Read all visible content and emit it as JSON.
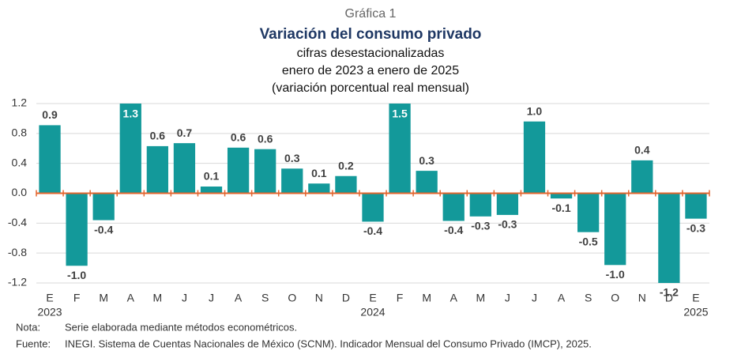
{
  "chart_data": {
    "type": "bar",
    "kicker": "Gráfica 1",
    "title": "Variación del consumo privado",
    "subtitle": [
      "cifras desestacionalizadas",
      "enero de 2023 a enero de 2025",
      "(variación porcentual real mensual)"
    ],
    "categories": [
      "E",
      "F",
      "M",
      "A",
      "M",
      "J",
      "J",
      "A",
      "S",
      "O",
      "N",
      "D",
      "E",
      "F",
      "M",
      "A",
      "M",
      "J",
      "J",
      "A",
      "S",
      "O",
      "N",
      "D",
      "E"
    ],
    "years": [
      "2023",
      null,
      null,
      null,
      null,
      null,
      null,
      null,
      null,
      null,
      null,
      null,
      "2024",
      null,
      null,
      null,
      null,
      null,
      null,
      null,
      null,
      null,
      null,
      null,
      "2025"
    ],
    "values": [
      0.91,
      -0.97,
      -0.36,
      1.3,
      0.63,
      0.67,
      0.09,
      0.61,
      0.59,
      0.33,
      0.13,
      0.23,
      -0.38,
      1.5,
      0.3,
      -0.37,
      -0.31,
      -0.29,
      0.96,
      -0.07,
      -0.52,
      -0.96,
      0.44,
      -1.2,
      -0.34
    ],
    "value_labels": [
      "0.9",
      "-1.0",
      "-0.4",
      "1.3",
      "0.6",
      "0.7",
      "0.1",
      "0.6",
      "0.6",
      "0.3",
      "0.1",
      "0.2",
      "-0.4",
      "1.5",
      "0.3",
      "-0.4",
      "-0.3",
      "-0.3",
      "1.0",
      "-0.1",
      "-0.5",
      "-1.0",
      "0.4",
      "-1.2",
      "-0.3"
    ],
    "color": "#13999a",
    "axis_color": "#e3652e",
    "ylim": [
      -1.2,
      1.2
    ],
    "yticks": [
      -1.2,
      -0.8,
      -0.4,
      {
        "value": 0,
        "label": "0.0"
      },
      0.4,
      0.8,
      1.2
    ],
    "grid": true,
    "notes": [
      {
        "label": "Nota:",
        "text": "Serie elaborada mediante métodos econométricos."
      },
      {
        "label": "Fuente:",
        "text": "INEGI. Sistema de Cuentas Nacionales de México (SCNM). Indicador Mensual del Consumo Privado (IMCP), 2025."
      }
    ]
  }
}
